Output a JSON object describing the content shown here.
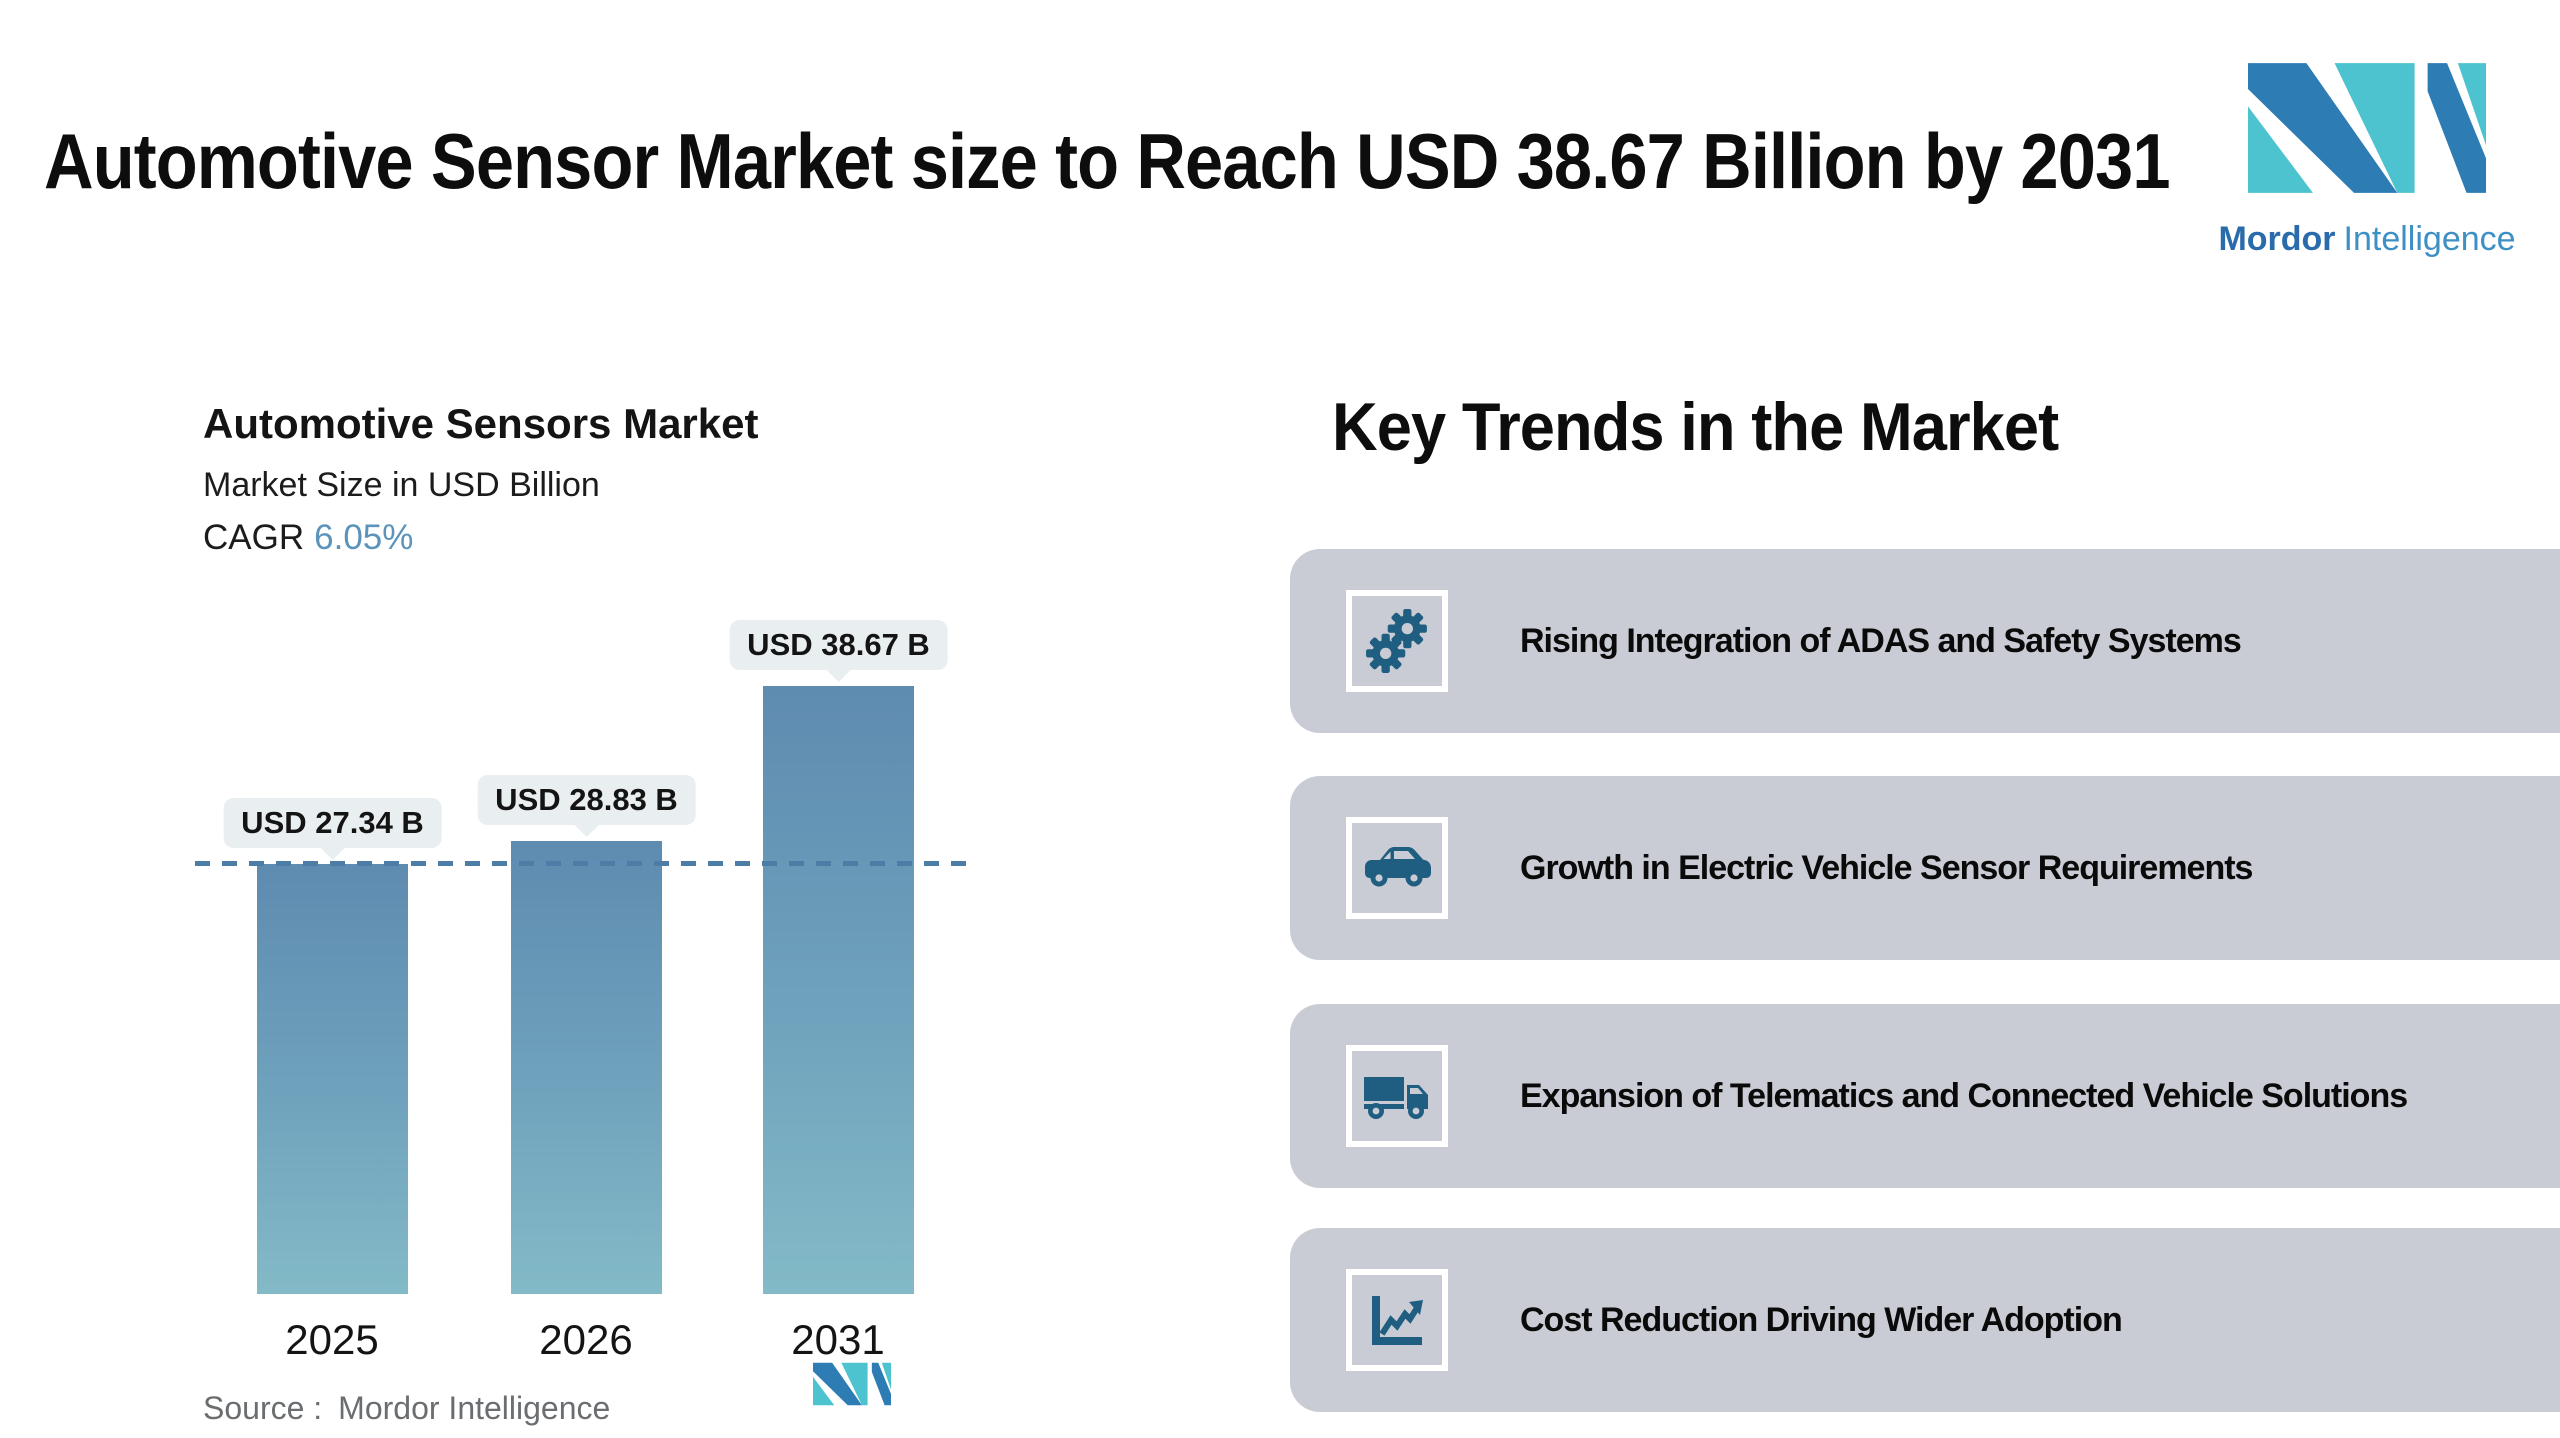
{
  "page": {
    "title": "Automotive Sensor Market size to Reach USD 38.67 Billion by 2031",
    "background": "#ffffff"
  },
  "brand": {
    "name": "Mordor Intelligence",
    "logo_text_primary": "Mordor",
    "logo_text_secondary": "Intelligence",
    "colors": {
      "blue": "#2e7cb4",
      "teal": "#4cc3ce",
      "text_dark_blue": "#2a6cab",
      "text_light_blue": "#3e8fc5"
    }
  },
  "chart_panel": {
    "title": "Automotive Sensors Market",
    "subtitle": "Market Size in USD Billion",
    "cagr_label": "CAGR",
    "cagr_value": "6.05%",
    "cagr_value_color": "#5b93bb",
    "source_label": "Source :",
    "source_value": "Mordor Intelligence"
  },
  "chart_data": {
    "type": "bar",
    "title": "Automotive Sensors Market",
    "subtitle": "Market Size in USD Billion",
    "unit": "USD Billion",
    "cagr": "6.05%",
    "categories": [
      "2025",
      "2026",
      "2031"
    ],
    "values": [
      27.34,
      28.83,
      38.67
    ],
    "value_labels": [
      "USD 27.34 B",
      "USD 28.83 B",
      "USD 38.67 B"
    ],
    "ylim": [
      0,
      42
    ],
    "grid": false,
    "legend": "none",
    "reference_line": {
      "value": 27.34,
      "style": "dashed",
      "color": "#4d7ca6"
    },
    "bar_gradient_top": "#5e8bb0",
    "bar_gradient_bottom": "#83bac7",
    "label_bubble_color": "#e9eef0"
  },
  "key_trends": {
    "heading": "Key Trends in the Market",
    "card_background": "#c9ccd4",
    "icon_color": "#1f5e80",
    "items": [
      {
        "icon": "gears-icon",
        "label": "Rising Integration of ADAS and Safety Systems"
      },
      {
        "icon": "car-icon",
        "label": "Growth in Electric Vehicle Sensor Requirements"
      },
      {
        "icon": "truck-icon",
        "label": "Expansion of Telematics and Connected Vehicle Solutions"
      },
      {
        "icon": "line-chart-icon",
        "label": "Cost Reduction Driving Wider Adoption"
      }
    ]
  }
}
